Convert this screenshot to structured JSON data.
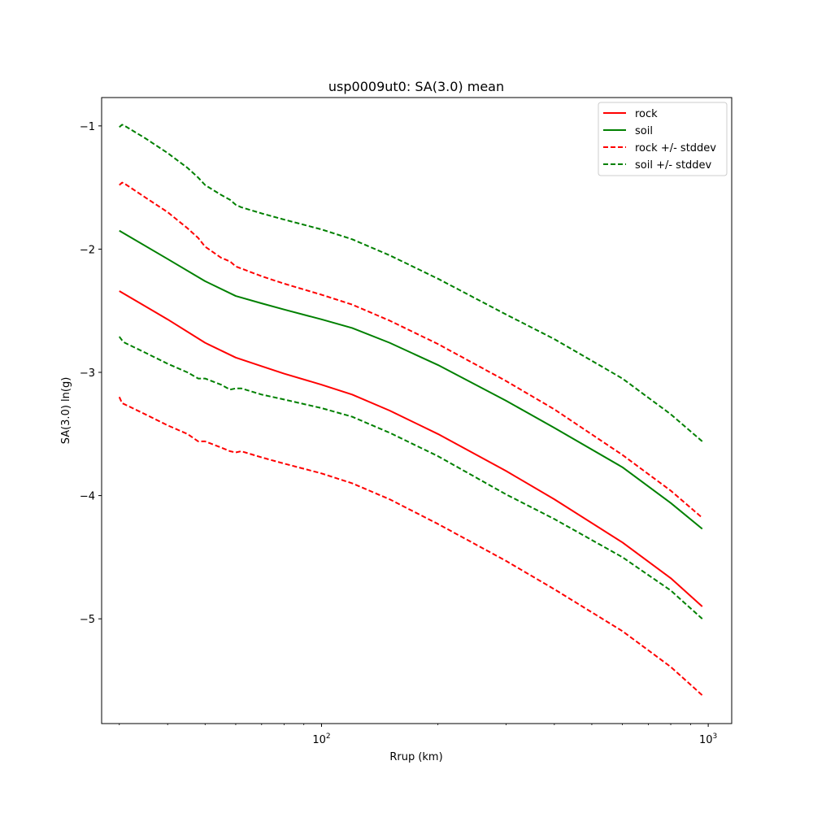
{
  "chart_data": {
    "type": "line",
    "title": "usp0009ut0: SA(3.0) mean",
    "xlabel": "Rrup (km)",
    "ylabel": "SA(3.0) ln(g)",
    "xscale": "log",
    "xlim": [
      27,
      1150
    ],
    "ylim": [
      -5.85,
      -0.77
    ],
    "grid": false,
    "legend_position": "upper-right",
    "x_ticks": [
      {
        "value": 100,
        "base": "10",
        "exp": "2"
      },
      {
        "value": 1000,
        "base": "10",
        "exp": "3"
      }
    ],
    "y_ticks": [
      {
        "value": -1,
        "label": "−1"
      },
      {
        "value": -2,
        "label": "−2"
      },
      {
        "value": -3,
        "label": "−3"
      },
      {
        "value": -4,
        "label": "−4"
      },
      {
        "value": -5,
        "label": "−5"
      }
    ],
    "series": [
      {
        "name": "rock",
        "color": "#ff0000",
        "dash": "solid",
        "x": [
          30,
          40,
          50,
          60,
          70,
          80,
          100,
          120,
          150,
          200,
          300,
          400,
          600,
          800,
          965
        ],
        "y": [
          -2.34,
          -2.57,
          -2.76,
          -2.88,
          -2.95,
          -3.01,
          -3.1,
          -3.18,
          -3.31,
          -3.5,
          -3.8,
          -4.03,
          -4.38,
          -4.67,
          -4.9
        ]
      },
      {
        "name": "soil",
        "color": "#008000",
        "dash": "solid",
        "x": [
          30,
          40,
          50,
          60,
          70,
          80,
          100,
          120,
          150,
          200,
          300,
          400,
          600,
          800,
          965
        ],
        "y": [
          -1.85,
          -2.08,
          -2.26,
          -2.38,
          -2.44,
          -2.49,
          -2.57,
          -2.64,
          -2.76,
          -2.94,
          -3.23,
          -3.45,
          -3.77,
          -4.06,
          -4.27
        ]
      },
      {
        "name": "rock +/- stddev",
        "color": "#ff0000",
        "dash": "dashed",
        "x": [
          30,
          30.5,
          31,
          35,
          40,
          45,
          48,
          50,
          55,
          58,
          60,
          70,
          80,
          100,
          120,
          150,
          200,
          300,
          400,
          600,
          800,
          965
        ],
        "y": [
          -1.48,
          -1.46,
          -1.47,
          -1.58,
          -1.7,
          -1.83,
          -1.91,
          -1.98,
          -2.07,
          -2.1,
          -2.14,
          -2.22,
          -2.28,
          -2.37,
          -2.45,
          -2.58,
          -2.77,
          -3.07,
          -3.3,
          -3.67,
          -3.96,
          -4.18
        ]
      },
      {
        "name": "",
        "color": "#ff0000",
        "dash": "dashed",
        "x": [
          30,
          30.5,
          31,
          35,
          40,
          45,
          48,
          50,
          55,
          58,
          60,
          62,
          70,
          80,
          100,
          120,
          150,
          200,
          300,
          400,
          600,
          800,
          965
        ],
        "y": [
          -3.2,
          -3.25,
          -3.26,
          -3.34,
          -3.43,
          -3.5,
          -3.56,
          -3.56,
          -3.61,
          -3.64,
          -3.65,
          -3.64,
          -3.69,
          -3.74,
          -3.82,
          -3.9,
          -4.03,
          -4.23,
          -4.53,
          -4.76,
          -5.1,
          -5.39,
          -5.62
        ]
      },
      {
        "name": "soil +/- stddev",
        "color": "#008000",
        "dash": "dashed",
        "x": [
          30,
          30.5,
          31,
          35,
          40,
          45,
          48,
          50,
          55,
          58,
          60,
          62,
          70,
          80,
          100,
          120,
          150,
          200,
          300,
          400,
          600,
          800,
          965
        ],
        "y": [
          -1.01,
          -0.99,
          -1.0,
          -1.1,
          -1.22,
          -1.34,
          -1.42,
          -1.48,
          -1.56,
          -1.6,
          -1.64,
          -1.66,
          -1.71,
          -1.76,
          -1.84,
          -1.92,
          -2.05,
          -2.24,
          -2.53,
          -2.73,
          -3.05,
          -3.34,
          -3.56
        ]
      },
      {
        "name": "",
        "color": "#008000",
        "dash": "dashed",
        "x": [
          30,
          30.5,
          31,
          35,
          40,
          45,
          48,
          50,
          55,
          58,
          60,
          62,
          70,
          80,
          100,
          120,
          150,
          200,
          300,
          400,
          600,
          800,
          965
        ],
        "y": [
          -2.71,
          -2.74,
          -2.76,
          -2.84,
          -2.93,
          -3.0,
          -3.05,
          -3.05,
          -3.1,
          -3.14,
          -3.13,
          -3.13,
          -3.18,
          -3.22,
          -3.29,
          -3.36,
          -3.49,
          -3.68,
          -3.99,
          -4.19,
          -4.5,
          -4.77,
          -5.0
        ]
      }
    ]
  }
}
